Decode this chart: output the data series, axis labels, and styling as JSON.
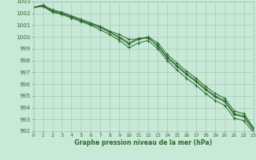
{
  "x": [
    0,
    1,
    2,
    3,
    4,
    5,
    6,
    7,
    8,
    9,
    10,
    11,
    12,
    13,
    14,
    15,
    16,
    17,
    18,
    19,
    20,
    21,
    22,
    23
  ],
  "series1": [
    1002.5,
    1002.7,
    1002.3,
    1002.1,
    1001.8,
    1001.5,
    1001.2,
    1000.9,
    1000.5,
    1000.2,
    999.8,
    999.8,
    1000.0,
    999.5,
    998.5,
    997.8,
    997.1,
    996.5,
    995.8,
    995.2,
    994.8,
    993.7,
    993.5,
    992.3
  ],
  "series2": [
    1002.5,
    1002.6,
    1002.2,
    1002.0,
    1001.7,
    1001.4,
    1001.1,
    1000.8,
    1000.4,
    999.9,
    999.4,
    999.8,
    1000.0,
    999.2,
    998.2,
    997.5,
    996.8,
    996.2,
    995.5,
    994.9,
    994.5,
    993.4,
    993.2,
    992.1
  ],
  "series3": [
    1002.5,
    1002.6,
    1002.1,
    1001.9,
    1001.6,
    1001.3,
    1001.0,
    1000.6,
    1000.2,
    999.7,
    999.1,
    999.5,
    999.7,
    999.0,
    998.0,
    997.2,
    996.5,
    995.9,
    995.2,
    994.6,
    994.2,
    993.1,
    992.9,
    991.9
  ],
  "series4": [
    1002.5,
    1002.7,
    1002.2,
    1002.0,
    1001.7,
    1001.4,
    1001.1,
    1000.8,
    1000.4,
    1000.0,
    999.5,
    999.9,
    999.9,
    999.3,
    998.3,
    997.6,
    996.9,
    996.3,
    995.6,
    995.0,
    994.6,
    993.5,
    993.3,
    992.2
  ],
  "line_color": "#2d6a2d",
  "bg_color": "#c8e8d8",
  "grid_color": "#a0c0b0",
  "xlabel": "Graphe pression niveau de la mer (hPa)",
  "ylim": [
    992,
    1003
  ],
  "xlim": [
    0,
    23
  ]
}
